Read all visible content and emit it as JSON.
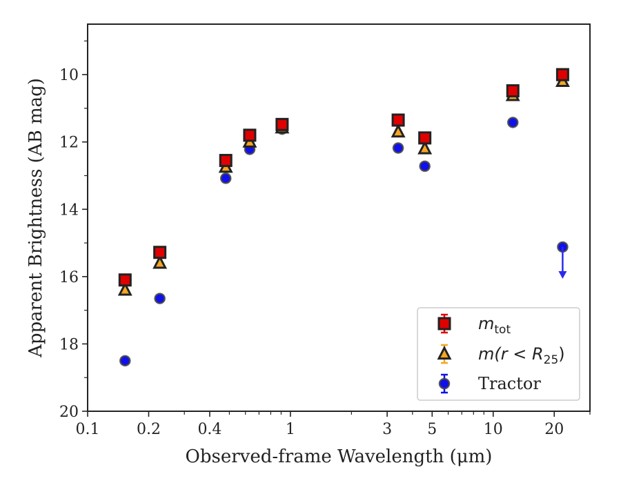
{
  "chart_data": {
    "type": "scatter",
    "title": "",
    "xlabel": "Observed-frame Wavelength (μm)",
    "ylabel": "Apparent Brightness (AB mag)",
    "xscale": "log",
    "xlim": [
      0.1,
      30
    ],
    "ylim": [
      20,
      8.5
    ],
    "y_inverted": true,
    "grid": false,
    "legend_position": "lower-right",
    "x_ticks": [
      {
        "value": 0.1,
        "label": "0.1"
      },
      {
        "value": 0.2,
        "label": "0.2"
      },
      {
        "value": 0.4,
        "label": "0.4"
      },
      {
        "value": 1,
        "label": "1"
      },
      {
        "value": 3,
        "label": "3"
      },
      {
        "value": 5,
        "label": "5"
      },
      {
        "value": 10,
        "label": "10"
      },
      {
        "value": 20,
        "label": "20"
      }
    ],
    "x_minor_ticks": [
      0.3,
      0.5,
      0.6,
      0.7,
      0.8,
      0.9,
      2,
      4,
      6,
      7,
      8,
      9,
      30
    ],
    "y_ticks": [
      10,
      12,
      14,
      16,
      18,
      20
    ],
    "series": [
      {
        "name": "m_tot",
        "legend_label": "m",
        "legend_sub": "tot",
        "marker": "square",
        "color": "#e00000",
        "edge": "#222222",
        "points": [
          {
            "x": 0.153,
            "y": 16.1
          },
          {
            "x": 0.227,
            "y": 15.28
          },
          {
            "x": 0.48,
            "y": 12.55
          },
          {
            "x": 0.63,
            "y": 11.8
          },
          {
            "x": 0.91,
            "y": 11.48
          },
          {
            "x": 3.4,
            "y": 11.35
          },
          {
            "x": 4.6,
            "y": 11.88
          },
          {
            "x": 12.5,
            "y": 10.48
          },
          {
            "x": 22,
            "y": 10.0
          }
        ]
      },
      {
        "name": "m(r < R25)",
        "legend_label": "m(r < R",
        "legend_sub": "25",
        "legend_suffix": ")",
        "marker": "triangle",
        "color": "#f5a623",
        "edge": "#222222",
        "points": [
          {
            "x": 0.153,
            "y": 16.4
          },
          {
            "x": 0.227,
            "y": 15.6
          },
          {
            "x": 0.48,
            "y": 12.75
          },
          {
            "x": 0.63,
            "y": 12.0
          },
          {
            "x": 0.91,
            "y": 11.58
          },
          {
            "x": 3.4,
            "y": 11.7
          },
          {
            "x": 4.6,
            "y": 12.2
          },
          {
            "x": 12.5,
            "y": 10.62
          },
          {
            "x": 22,
            "y": 10.2
          }
        ]
      },
      {
        "name": "Tractor",
        "legend_label": "Tractor",
        "marker": "circle",
        "color": "#1010ee",
        "edge": "#444444",
        "points": [
          {
            "x": 0.153,
            "y": 18.5
          },
          {
            "x": 0.227,
            "y": 16.65
          },
          {
            "x": 0.48,
            "y": 13.08
          },
          {
            "x": 0.63,
            "y": 12.22
          },
          {
            "x": 0.91,
            "y": 11.62
          },
          {
            "x": 3.4,
            "y": 12.18
          },
          {
            "x": 4.6,
            "y": 12.72
          },
          {
            "x": 12.5,
            "y": 11.42
          },
          {
            "x": 22,
            "y": 15.12,
            "upper_limit": true
          }
        ]
      }
    ]
  }
}
